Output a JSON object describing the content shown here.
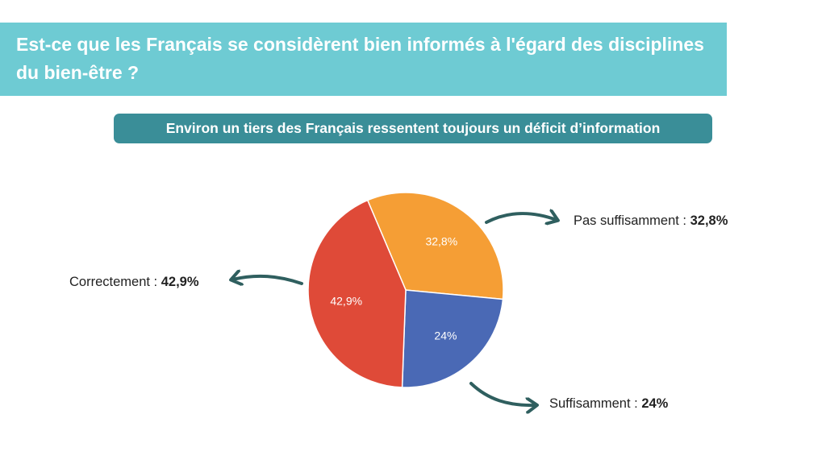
{
  "header": {
    "title": "Est-ce que les Français se considèrent bien informés à l'égard des disciplines du bien-être ?",
    "subtitle": "Environ un tiers des Français ressentent toujours un déficit d’information"
  },
  "callouts": {
    "pas_label": "Pas suffisamment : ",
    "pas_value": "32,8%",
    "corr_label": "Correctement : ",
    "corr_value": "42,9%",
    "suff_label": "Suffisamment : ",
    "suff_value": "24%"
  },
  "colors": {
    "title_banner": "#6ecbd3",
    "subtitle_pill": "#3a8e98",
    "arrow": "#2f5f5f"
  },
  "chart_data": {
    "type": "pie",
    "title": "",
    "slices": [
      {
        "label": "Pas suffisamment",
        "value": 32.8,
        "display": "32,8%",
        "color": "#f59e35"
      },
      {
        "label": "Suffisamment",
        "value": 24,
        "display": "24%",
        "color": "#4a69b5"
      },
      {
        "label": "Correctement",
        "value": 42.9,
        "display": "42,9%",
        "color": "#df4a38"
      }
    ]
  }
}
